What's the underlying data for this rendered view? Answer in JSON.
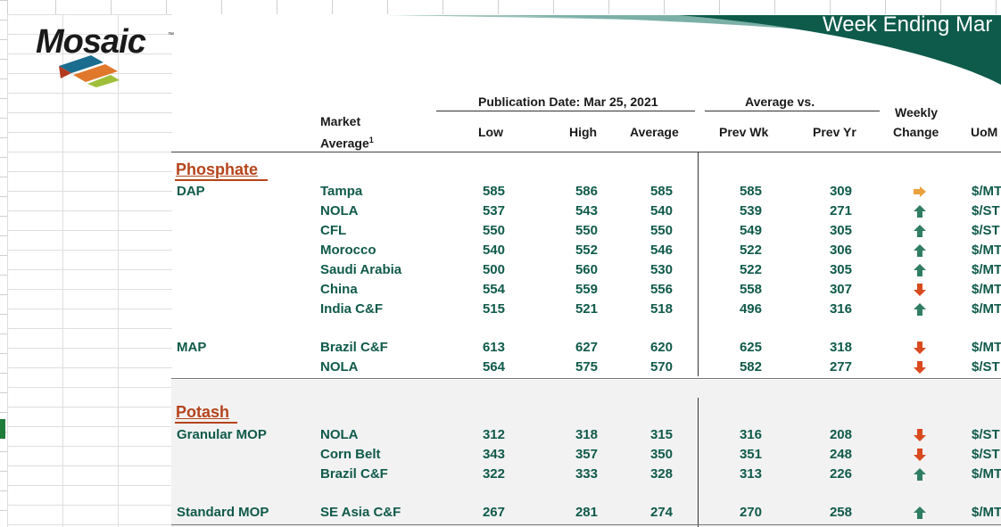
{
  "title": "Week Ending Mar",
  "logo": {
    "name": "Mosaic",
    "tm": "™"
  },
  "header": {
    "publication_date": "Publication Date:  Mar 25, 2021",
    "average_vs": "Average  vs.",
    "market_average": "Market",
    "market_average_2": "Average",
    "footnote": "1",
    "low": "Low",
    "high": "High",
    "average": "Average",
    "prev_wk": "Prev Wk",
    "prev_yr": "Prev Yr",
    "weekly": "Weekly",
    "change": "Change",
    "uom": "UoM"
  },
  "sections": [
    {
      "name": "Phosphate"
    },
    {
      "name": "Potash"
    }
  ],
  "groups": {
    "dap": "DAP",
    "map": "MAP",
    "granular_mop": "Granular MOP",
    "standard_mop": "Standard MOP"
  },
  "rows": [
    {
      "market": "Tampa",
      "low": "585",
      "high": "586",
      "avg": "585",
      "prev_wk": "585",
      "prev_yr": "309",
      "change": "flat",
      "uom": "$/MT"
    },
    {
      "market": "NOLA",
      "low": "537",
      "high": "543",
      "avg": "540",
      "prev_wk": "539",
      "prev_yr": "271",
      "change": "up",
      "uom": "$/ST"
    },
    {
      "market": "CFL",
      "low": "550",
      "high": "550",
      "avg": "550",
      "prev_wk": "549",
      "prev_yr": "305",
      "change": "up",
      "uom": "$/ST"
    },
    {
      "market": "Morocco",
      "low": "540",
      "high": "552",
      "avg": "546",
      "prev_wk": "522",
      "prev_yr": "306",
      "change": "up",
      "uom": "$/MT"
    },
    {
      "market": "Saudi Arabia",
      "low": "500",
      "high": "560",
      "avg": "530",
      "prev_wk": "522",
      "prev_yr": "305",
      "change": "up",
      "uom": "$/MT"
    },
    {
      "market": "China",
      "low": "554",
      "high": "559",
      "avg": "556",
      "prev_wk": "558",
      "prev_yr": "307",
      "change": "down",
      "uom": "$/MT"
    },
    {
      "market": "India C&F",
      "low": "515",
      "high": "521",
      "avg": "518",
      "prev_wk": "496",
      "prev_yr": "316",
      "change": "up",
      "uom": "$/MT"
    },
    {
      "market": "Brazil C&F",
      "low": "613",
      "high": "627",
      "avg": "620",
      "prev_wk": "625",
      "prev_yr": "318",
      "change": "down",
      "uom": "$/MT"
    },
    {
      "market": "NOLA",
      "low": "564",
      "high": "575",
      "avg": "570",
      "prev_wk": "582",
      "prev_yr": "277",
      "change": "down",
      "uom": "$/ST"
    },
    {
      "market": "NOLA",
      "low": "312",
      "high": "318",
      "avg": "315",
      "prev_wk": "316",
      "prev_yr": "208",
      "change": "down",
      "uom": "$/ST"
    },
    {
      "market": "Corn Belt",
      "low": "343",
      "high": "357",
      "avg": "350",
      "prev_wk": "351",
      "prev_yr": "248",
      "change": "down",
      "uom": "$/ST"
    },
    {
      "market": "Brazil C&F",
      "low": "322",
      "high": "333",
      "avg": "328",
      "prev_wk": "313",
      "prev_yr": "226",
      "change": "up",
      "uom": "$/MT"
    },
    {
      "market": "SE Asia C&F",
      "low": "267",
      "high": "281",
      "avg": "274",
      "prev_wk": "270",
      "prev_yr": "258",
      "change": "up",
      "uom": "$/MT"
    }
  ],
  "colors": {
    "up": "#2f7d62",
    "down": "#d94a1e",
    "flat": "#e9a23b",
    "section": "#b5441b",
    "teal": "#0f5a4a"
  }
}
